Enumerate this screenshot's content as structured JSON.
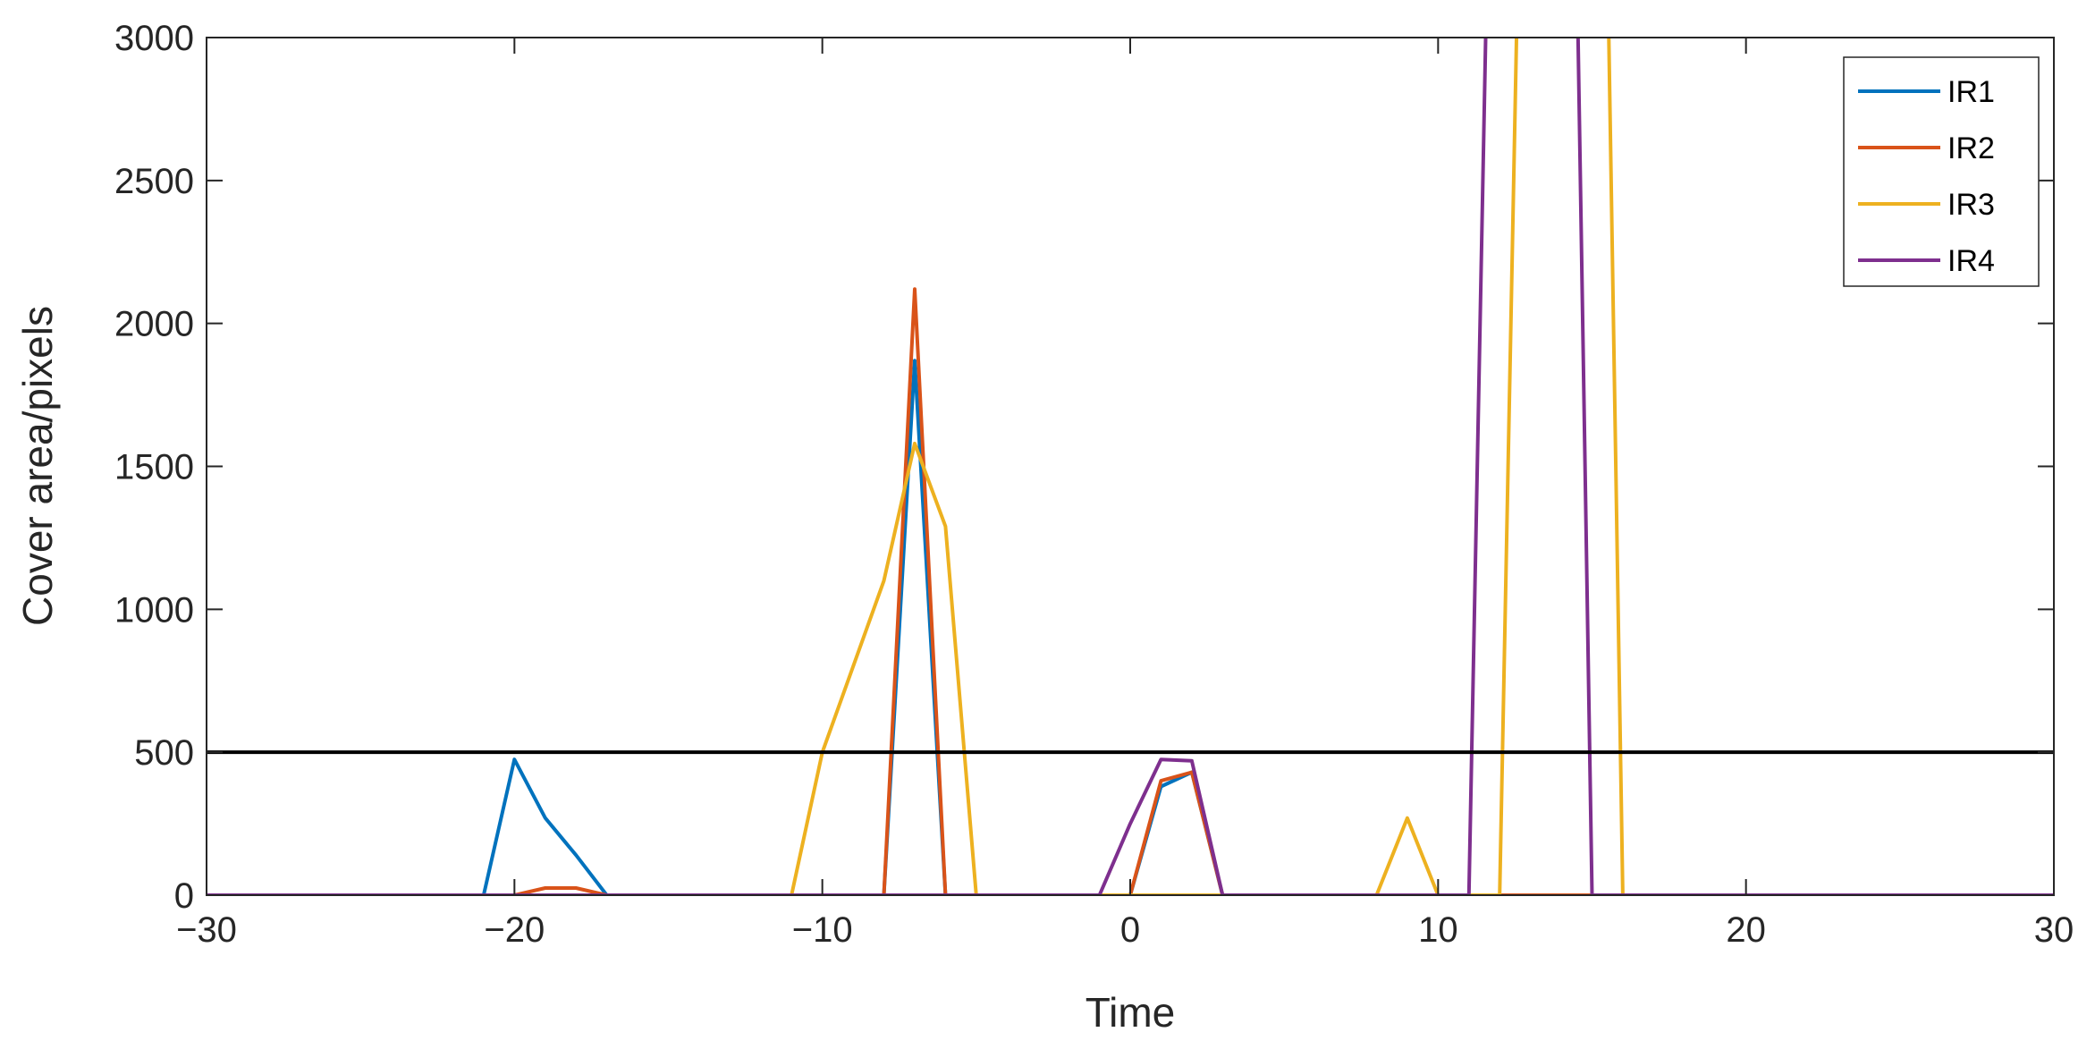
{
  "chart_data": {
    "type": "line",
    "xlabel": "Time",
    "ylabel": "Cover area/pixels",
    "xlim": [
      -30,
      30
    ],
    "ylim": [
      0,
      3000
    ],
    "xticks": [
      -30,
      -20,
      -10,
      0,
      10,
      20,
      30
    ],
    "xtick_labels": [
      "−30",
      "−20",
      "−10",
      "0",
      "10",
      "20",
      "30"
    ],
    "yticks": [
      0,
      500,
      1000,
      1500,
      2000,
      2500,
      3000
    ],
    "ytick_labels": [
      "0",
      "500",
      "1000",
      "1500",
      "2000",
      "2500",
      "3000"
    ],
    "grid": false,
    "legend_position": "top-right",
    "threshold": {
      "y": 500,
      "color": "#000000"
    },
    "series": [
      {
        "name": "IR1",
        "color": "#0072BD",
        "points": [
          [
            -30,
            0
          ],
          [
            -21,
            0
          ],
          [
            -20,
            475
          ],
          [
            -19,
            270
          ],
          [
            -18,
            140
          ],
          [
            -17,
            0
          ],
          [
            -8,
            0
          ],
          [
            -7,
            1870
          ],
          [
            -6,
            0
          ],
          [
            0,
            0
          ],
          [
            1,
            380
          ],
          [
            2,
            430
          ],
          [
            3,
            0
          ],
          [
            30,
            0
          ]
        ]
      },
      {
        "name": "IR2",
        "color": "#D95319",
        "points": [
          [
            -30,
            0
          ],
          [
            -20,
            0
          ],
          [
            -19,
            25
          ],
          [
            -18,
            25
          ],
          [
            -17,
            0
          ],
          [
            -8,
            0
          ],
          [
            -7,
            2120
          ],
          [
            -6,
            0
          ],
          [
            0,
            0
          ],
          [
            1,
            400
          ],
          [
            2,
            430
          ],
          [
            3,
            0
          ],
          [
            30,
            0
          ]
        ]
      },
      {
        "name": "IR3",
        "color": "#EDB120",
        "points": [
          [
            -30,
            0
          ],
          [
            -11,
            0
          ],
          [
            -10,
            500
          ],
          [
            -8,
            1100
          ],
          [
            -7,
            1580
          ],
          [
            -6,
            1290
          ],
          [
            -5,
            0
          ],
          [
            8,
            0
          ],
          [
            9,
            270
          ],
          [
            10,
            0
          ],
          [
            12,
            0
          ],
          [
            12.6,
            3300
          ],
          [
            15.5,
            3300
          ],
          [
            16,
            0
          ],
          [
            30,
            0
          ]
        ]
      },
      {
        "name": "IR4",
        "color": "#7E2F8E",
        "points": [
          [
            -30,
            0
          ],
          [
            -1,
            0
          ],
          [
            0,
            250
          ],
          [
            1,
            475
          ],
          [
            2,
            470
          ],
          [
            3,
            0
          ],
          [
            11,
            0
          ],
          [
            11.6,
            3300
          ],
          [
            14.5,
            3300
          ],
          [
            15,
            0
          ],
          [
            30,
            0
          ]
        ]
      }
    ]
  }
}
